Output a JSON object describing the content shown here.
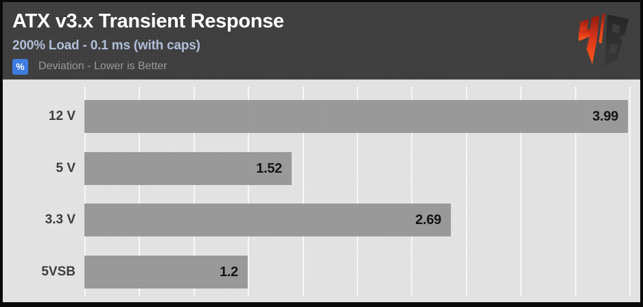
{
  "header": {
    "title": "ATX v3.x Transient Response",
    "subtitle": "200% Load - 0.1 ms (with caps)",
    "legend_badge": "%",
    "legend_text": "Deviation - Lower is Better",
    "badge_color": "#3d7ce0",
    "background_color": "#3e3e3e"
  },
  "logo": {
    "name": "Hardware Busters HB emblem",
    "primary_color": "#ff4a1d",
    "secondary_color": "#2c2c2c"
  },
  "chart_data": {
    "type": "bar",
    "orientation": "horizontal",
    "title": "ATX v3.x Transient Response",
    "subtitle": "200% Load - 0.1 ms (with caps)",
    "note": "Deviation - Lower is Better",
    "unit": "%",
    "categories": [
      "12 V",
      "5 V",
      "3.3 V",
      "5VSB"
    ],
    "values": [
      3.99,
      1.52,
      2.69,
      1.2
    ],
    "value_labels": [
      "3.99",
      "1.52",
      "2.69",
      "1.2"
    ],
    "xlim": [
      0,
      4.0
    ],
    "grid_step": 0.4,
    "grid": true,
    "legend_position": "top-left",
    "bar_color": "#9b9b9b",
    "plot_bg": "#e3e3e3",
    "value_label_color": "#141414",
    "category_label_color": "#3d3d3d"
  }
}
